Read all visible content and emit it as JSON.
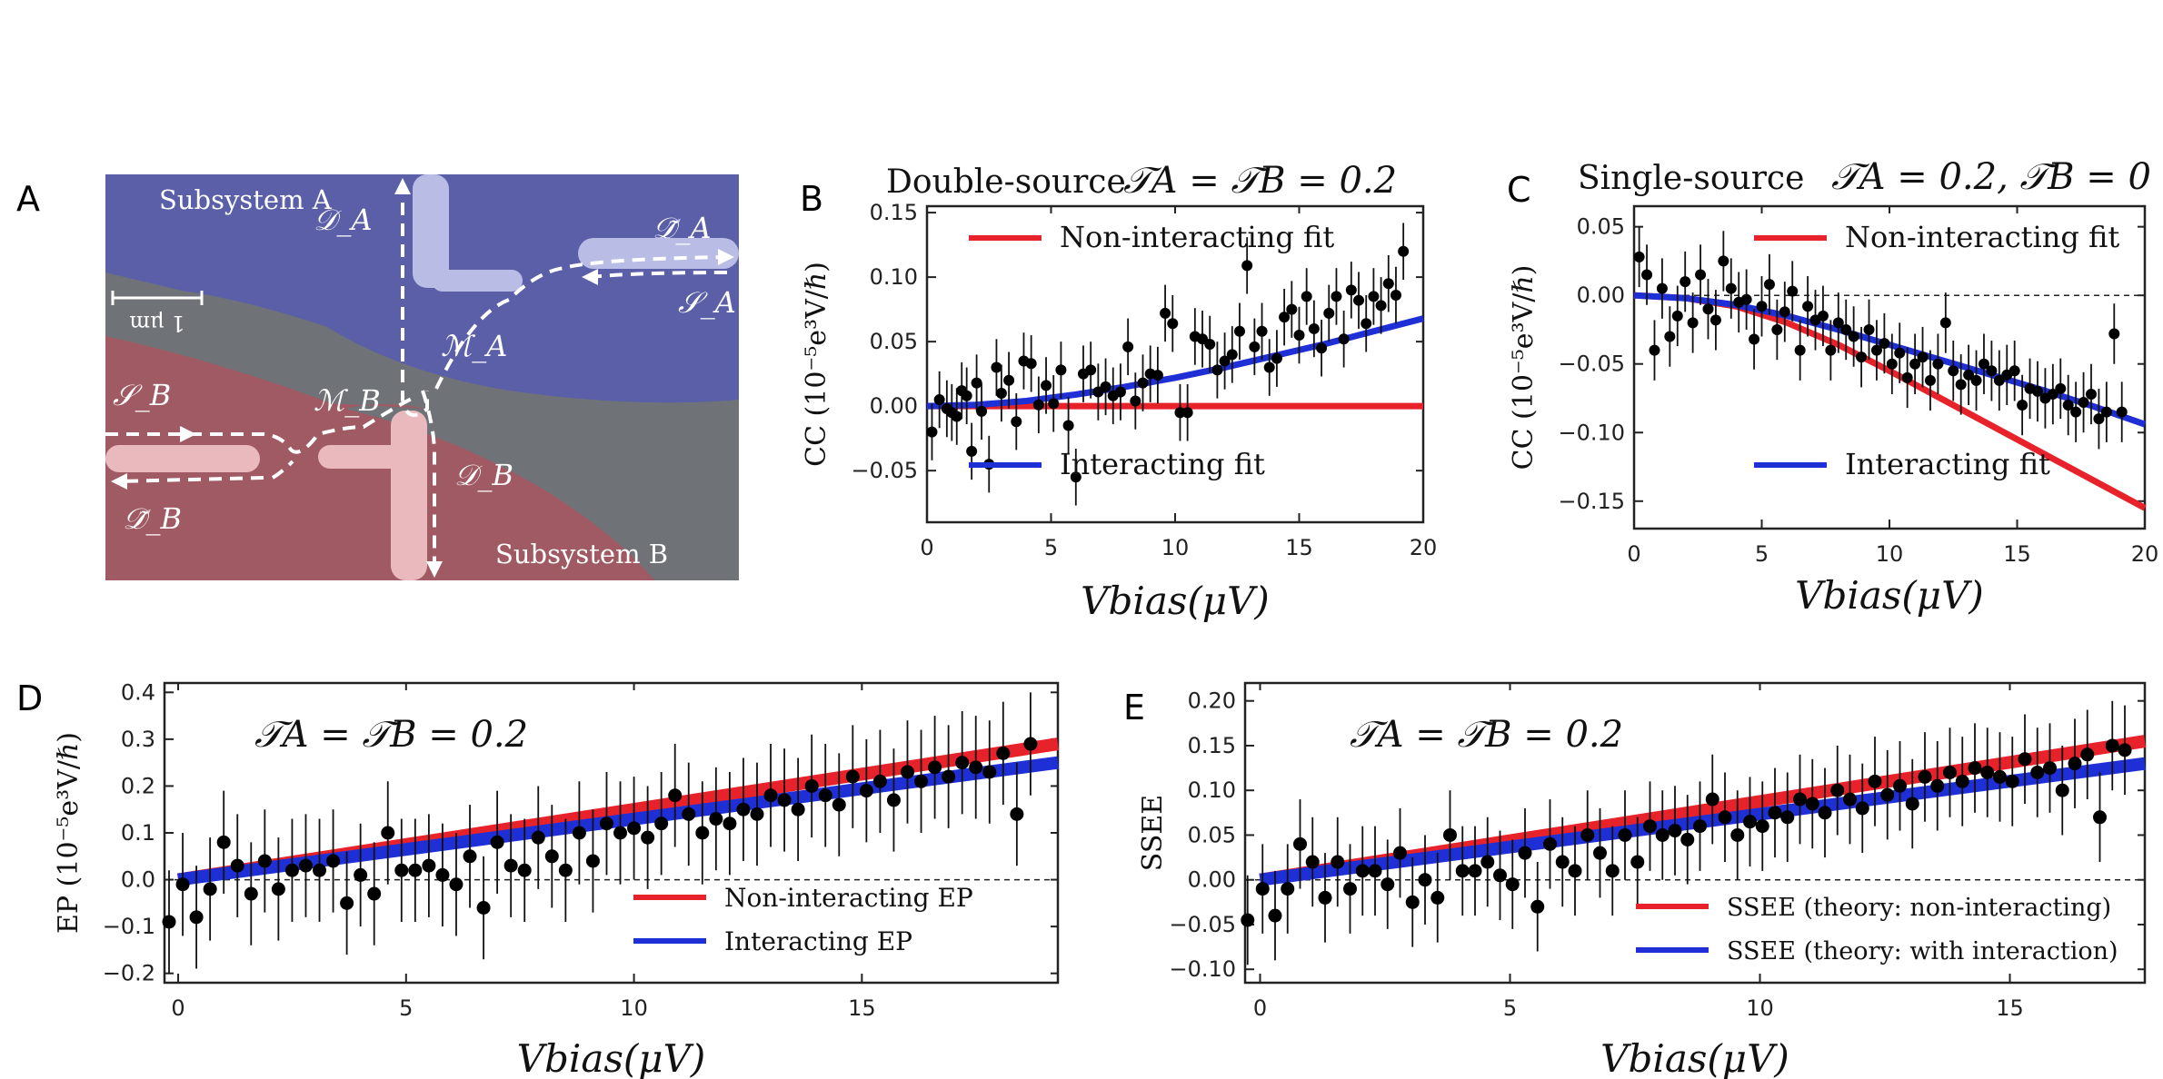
{
  "panel_labels": {
    "A": "A",
    "B": "B",
    "C": "C",
    "D": "D",
    "E": "E"
  },
  "device_image": {
    "subsystem_a": "Subsystem A",
    "subsystem_b": "Subsystem B",
    "scale_bar": "1 μm",
    "labels": {
      "DA": "𝒟_A",
      "DtA": "𝒟̃_A",
      "MA": "ℳ_A",
      "SA": "𝒮_A",
      "SB": "𝒮_B",
      "MB": "ℳ_B",
      "DB": "𝒟_B",
      "DtB": "𝒟̃_B"
    },
    "colors": {
      "subsystem_a": "#5a5fa8",
      "subsystem_b": "#a05a63",
      "background": "#6f7378",
      "gate_a": "#b9bde6",
      "gate_b": "#eab9bd"
    }
  },
  "chart_data": [
    {
      "id": "B",
      "type": "scatter",
      "title_left": "Double-source",
      "title_right": "𝒯A = 𝒯B = 0.2",
      "xlabel": "Vbias(μV)",
      "ylabel": "CC (10⁻⁵e³V/ℏ)",
      "xlim": [
        0,
        20
      ],
      "ylim": [
        -0.09,
        0.155
      ],
      "xticks": [
        "0",
        "5",
        "10",
        "15",
        "20"
      ],
      "xtick_values": [
        0,
        5,
        10,
        15,
        20
      ],
      "yticks": [
        "−0.05",
        "0.00",
        "0.05",
        "0.10",
        "0.15"
      ],
      "ytick_values": [
        -0.05,
        0,
        0.05,
        0.1,
        0.15
      ],
      "zero_line": true,
      "legend": [
        "Non-interacting fit",
        "Interacting fit"
      ],
      "series": [
        {
          "name": "Non-interacting fit",
          "color": "#e8222a",
          "type": "line",
          "x": [
            0,
            20
          ],
          "y": [
            0,
            0
          ]
        },
        {
          "name": "Interacting fit",
          "color": "#1f2fd6",
          "type": "line",
          "x": [
            0,
            2,
            4,
            6,
            8,
            10,
            12,
            14,
            16,
            18,
            20
          ],
          "y": [
            0,
            0.001,
            0.004,
            0.009,
            0.015,
            0.022,
            0.03,
            0.039,
            0.048,
            0.058,
            0.068
          ]
        }
      ],
      "points": {
        "x": [
          0.2,
          0.5,
          0.8,
          1.0,
          1.2,
          1.4,
          1.6,
          1.8,
          2.0,
          2.2,
          2.5,
          2.8,
          3.0,
          3.3,
          3.6,
          3.9,
          4.2,
          4.5,
          4.8,
          5.1,
          5.4,
          5.7,
          6.0,
          6.3,
          6.6,
          6.9,
          7.2,
          7.5,
          7.8,
          8.1,
          8.4,
          8.7,
          9.0,
          9.3,
          9.6,
          9.9,
          10.2,
          10.5,
          10.8,
          11.1,
          11.4,
          11.7,
          12.0,
          12.3,
          12.6,
          12.9,
          13.2,
          13.5,
          13.8,
          14.1,
          14.4,
          14.7,
          15.0,
          15.3,
          15.6,
          15.9,
          16.2,
          16.5,
          16.8,
          17.1,
          17.4,
          17.7,
          18.0,
          18.3,
          18.6,
          18.9,
          19.2
        ],
        "y": [
          -0.02,
          0.005,
          -0.002,
          -0.005,
          -0.008,
          0.012,
          0.008,
          -0.035,
          0.018,
          -0.004,
          -0.045,
          0.03,
          0.01,
          0.02,
          -0.012,
          0.035,
          0.033,
          0.001,
          0.016,
          0.002,
          0.028,
          -0.015,
          -0.055,
          0.025,
          0.028,
          0.011,
          0.015,
          0.008,
          0.011,
          0.046,
          0.004,
          0.018,
          0.025,
          0.024,
          0.072,
          0.064,
          -0.005,
          -0.005,
          0.054,
          0.052,
          0.048,
          0.028,
          0.035,
          0.04,
          0.058,
          0.109,
          0.046,
          0.058,
          0.03,
          0.037,
          0.069,
          0.075,
          0.055,
          0.085,
          0.06,
          0.045,
          0.072,
          0.085,
          0.052,
          0.09,
          0.082,
          0.064,
          0.085,
          0.078,
          0.095,
          0.086,
          0.12
        ],
        "err": 0.022
      }
    },
    {
      "id": "C",
      "type": "scatter",
      "title_left": "Single-source",
      "title_right": "𝒯A = 0.2, 𝒯B = 0",
      "xlabel": "Vbias(μV)",
      "ylabel": "CC (10⁻⁵e³V/ℏ)",
      "xlim": [
        0,
        20
      ],
      "ylim": [
        -0.17,
        0.065
      ],
      "xticks": [
        "0",
        "5",
        "10",
        "15",
        "20"
      ],
      "xtick_values": [
        0,
        5,
        10,
        15,
        20
      ],
      "yticks": [
        "−0.15",
        "−0.10",
        "−0.05",
        "0.00",
        "0.05"
      ],
      "ytick_values": [
        -0.15,
        -0.1,
        -0.05,
        0,
        0.05
      ],
      "zero_line": true,
      "legend": [
        "Non-interacting fit",
        "Interacting fit"
      ],
      "series": [
        {
          "name": "Non-interacting fit",
          "color": "#e8222a",
          "type": "line",
          "x": [
            0,
            2,
            4,
            6,
            8,
            10,
            12,
            14,
            16,
            18,
            20
          ],
          "y": [
            0,
            -0.002,
            -0.008,
            -0.02,
            -0.036,
            -0.055,
            -0.075,
            -0.095,
            -0.115,
            -0.135,
            -0.155
          ]
        },
        {
          "name": "Interacting fit",
          "color": "#1f2fd6",
          "type": "line",
          "x": [
            0,
            2,
            4,
            6,
            8,
            10,
            12,
            14,
            16,
            18,
            20
          ],
          "y": [
            0,
            -0.002,
            -0.007,
            -0.015,
            -0.025,
            -0.036,
            -0.047,
            -0.058,
            -0.069,
            -0.081,
            -0.094
          ]
        }
      ],
      "points": {
        "x": [
          0.2,
          0.5,
          0.8,
          1.1,
          1.4,
          1.7,
          2.0,
          2.3,
          2.6,
          2.9,
          3.2,
          3.5,
          3.8,
          4.1,
          4.4,
          4.7,
          5.0,
          5.3,
          5.6,
          5.9,
          6.2,
          6.5,
          6.8,
          7.1,
          7.4,
          7.7,
          8.0,
          8.3,
          8.6,
          8.9,
          9.2,
          9.5,
          9.8,
          10.1,
          10.4,
          10.7,
          11.0,
          11.3,
          11.6,
          11.9,
          12.2,
          12.5,
          12.8,
          13.1,
          13.4,
          13.7,
          14.0,
          14.3,
          14.6,
          14.9,
          15.2,
          15.5,
          15.8,
          16.1,
          16.4,
          16.7,
          17.0,
          17.3,
          17.6,
          17.9,
          18.2,
          18.5,
          18.8,
          19.1
        ],
        "y": [
          0.028,
          0.015,
          -0.04,
          0.005,
          -0.03,
          -0.015,
          0.01,
          -0.02,
          0.015,
          -0.01,
          -0.018,
          0.025,
          0.005,
          -0.005,
          -0.003,
          -0.032,
          -0.008,
          0.008,
          -0.025,
          -0.012,
          0.003,
          -0.04,
          -0.008,
          -0.018,
          -0.015,
          -0.04,
          -0.02,
          -0.025,
          -0.03,
          -0.045,
          -0.025,
          -0.04,
          -0.035,
          -0.05,
          -0.042,
          -0.06,
          -0.05,
          -0.045,
          -0.062,
          -0.05,
          -0.02,
          -0.055,
          -0.065,
          -0.058,
          -0.062,
          -0.05,
          -0.055,
          -0.062,
          -0.058,
          -0.055,
          -0.08,
          -0.068,
          -0.07,
          -0.075,
          -0.072,
          -0.068,
          -0.08,
          -0.085,
          -0.078,
          -0.072,
          -0.09,
          -0.085,
          -0.028,
          -0.085
        ],
        "err": 0.022
      }
    },
    {
      "id": "D",
      "type": "scatter",
      "title_left": "",
      "title_right": "𝒯A = 𝒯B = 0.2",
      "xlabel": "Vbias(μV)",
      "ylabel": "EP (10⁻⁵e³V/ℏ)",
      "xlim": [
        -0.3,
        19.3
      ],
      "ylim": [
        -0.22,
        0.42
      ],
      "xticks": [
        "0",
        "5",
        "10",
        "15"
      ],
      "xtick_values": [
        0,
        5,
        10,
        15
      ],
      "yticks": [
        "−0.2",
        "−0.1",
        "0.0",
        "0.1",
        "0.2",
        "0.3",
        "0.4"
      ],
      "ytick_values": [
        -0.2,
        -0.1,
        0,
        0.1,
        0.2,
        0.3,
        0.4
      ],
      "zero_line": true,
      "legend": [
        "Non-interacting EP",
        "Interacting EP"
      ],
      "series": [
        {
          "name": "Non-interacting EP",
          "color": "#e8222a",
          "type": "band",
          "x": [
            0,
            19.3
          ],
          "y": [
            0,
            0.29
          ]
        },
        {
          "name": "Interacting EP",
          "color": "#1f2fd6",
          "type": "band",
          "x": [
            0,
            19.3
          ],
          "y": [
            0,
            0.25
          ]
        }
      ],
      "points": {
        "x": [
          -0.2,
          0.1,
          0.4,
          0.7,
          1.0,
          1.3,
          1.6,
          1.9,
          2.2,
          2.5,
          2.8,
          3.1,
          3.4,
          3.7,
          4.0,
          4.3,
          4.6,
          4.9,
          5.2,
          5.5,
          5.8,
          6.1,
          6.4,
          6.7,
          7.0,
          7.3,
          7.6,
          7.9,
          8.2,
          8.5,
          8.8,
          9.1,
          9.4,
          9.7,
          10.0,
          10.3,
          10.6,
          10.9,
          11.2,
          11.5,
          11.8,
          12.1,
          12.4,
          12.7,
          13.0,
          13.3,
          13.6,
          13.9,
          14.2,
          14.5,
          14.8,
          15.1,
          15.4,
          15.7,
          16.0,
          16.3,
          16.6,
          16.9,
          17.2,
          17.5,
          17.8,
          18.1,
          18.4,
          18.7
        ],
        "y": [
          -0.09,
          -0.01,
          -0.08,
          -0.02,
          0.08,
          0.03,
          -0.03,
          0.04,
          -0.02,
          0.02,
          0.03,
          0.02,
          0.04,
          -0.05,
          0.01,
          -0.03,
          0.1,
          0.02,
          0.02,
          0.03,
          0.01,
          -0.01,
          0.05,
          -0.06,
          0.08,
          0.03,
          0.02,
          0.09,
          0.05,
          0.02,
          0.1,
          0.04,
          0.12,
          0.1,
          0.11,
          0.09,
          0.12,
          0.18,
          0.14,
          0.1,
          0.13,
          0.12,
          0.15,
          0.14,
          0.18,
          0.17,
          0.15,
          0.2,
          0.18,
          0.16,
          0.22,
          0.19,
          0.21,
          0.17,
          0.23,
          0.21,
          0.24,
          0.22,
          0.25,
          0.24,
          0.23,
          0.27,
          0.14,
          0.29
        ],
        "err": 0.11
      }
    },
    {
      "id": "E",
      "type": "scatter",
      "title_left": "",
      "title_right": "𝒯A = 𝒯B = 0.2",
      "xlabel": "Vbias(μV)",
      "ylabel": "SSEE",
      "xlim": [
        -0.3,
        17.7
      ],
      "ylim": [
        -0.115,
        0.22
      ],
      "xticks": [
        "0",
        "5",
        "10",
        "15"
      ],
      "xtick_values": [
        0,
        5,
        10,
        15
      ],
      "yticks": [
        "−0.10",
        "−0.05",
        "0.00",
        "0.05",
        "0.10",
        "0.15",
        "0.20"
      ],
      "ytick_values": [
        -0.1,
        -0.05,
        0,
        0.05,
        0.1,
        0.15,
        0.2
      ],
      "zero_line": true,
      "legend": [
        "SSEE (theory: non-interacting)",
        "SSEE (theory: with interaction)"
      ],
      "series": [
        {
          "name": "SSEE (theory: non-interacting)",
          "color": "#e8222a",
          "type": "band",
          "x": [
            0,
            17.7
          ],
          "y": [
            0,
            0.155
          ]
        },
        {
          "name": "SSEE (theory: with interaction)",
          "color": "#1f2fd6",
          "type": "band",
          "x": [
            0,
            17.7
          ],
          "y": [
            0,
            0.13
          ]
        }
      ],
      "points": {
        "x": [
          -0.25,
          0.05,
          0.3,
          0.55,
          0.8,
          1.05,
          1.3,
          1.55,
          1.8,
          2.05,
          2.3,
          2.55,
          2.8,
          3.05,
          3.3,
          3.55,
          3.8,
          4.05,
          4.3,
          4.55,
          4.8,
          5.05,
          5.3,
          5.55,
          5.8,
          6.05,
          6.3,
          6.55,
          6.8,
          7.05,
          7.3,
          7.55,
          7.8,
          8.05,
          8.3,
          8.55,
          8.8,
          9.05,
          9.3,
          9.55,
          9.8,
          10.05,
          10.3,
          10.55,
          10.8,
          11.05,
          11.3,
          11.55,
          11.8,
          12.05,
          12.3,
          12.55,
          12.8,
          13.05,
          13.3,
          13.55,
          13.8,
          14.05,
          14.3,
          14.55,
          14.8,
          15.05,
          15.3,
          15.55,
          15.8,
          16.05,
          16.3,
          16.55,
          16.8,
          17.05,
          17.3
        ],
        "y": [
          -0.045,
          -0.01,
          -0.04,
          -0.01,
          0.04,
          0.02,
          -0.02,
          0.02,
          -0.01,
          0.01,
          0.01,
          -0.005,
          0.03,
          -0.025,
          0.0,
          -0.02,
          0.05,
          0.01,
          0.01,
          0.02,
          0.005,
          -0.005,
          0.03,
          -0.03,
          0.04,
          0.02,
          0.01,
          0.05,
          0.03,
          0.01,
          0.05,
          0.02,
          0.06,
          0.05,
          0.055,
          0.045,
          0.06,
          0.09,
          0.07,
          0.05,
          0.065,
          0.06,
          0.075,
          0.07,
          0.09,
          0.085,
          0.075,
          0.1,
          0.09,
          0.08,
          0.11,
          0.095,
          0.105,
          0.085,
          0.115,
          0.105,
          0.12,
          0.11,
          0.125,
          0.12,
          0.115,
          0.11,
          0.135,
          0.12,
          0.125,
          0.1,
          0.13,
          0.14,
          0.07,
          0.15,
          0.145
        ],
        "err": 0.05
      }
    }
  ]
}
